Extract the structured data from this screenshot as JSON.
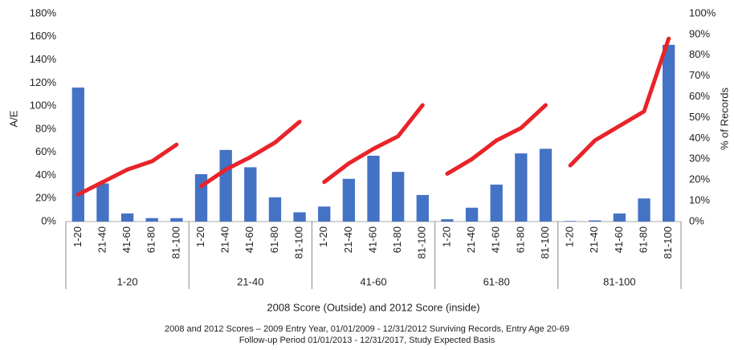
{
  "chart_data": {
    "type": "combo",
    "xlabel": "2008 Score (Outside) and 2012 Score (inside)",
    "ylabel": "A/E",
    "y2label": "% of Records",
    "footnote": [
      "2008 and 2012 Scores – 2009 Entry Year, 01/01/2009 - 12/31/2012 Surviving Records, Entry Age 20-69",
      "Follow-up Period 01/01/2013 - 12/31/2017, Study Expected Basis"
    ],
    "groups": [
      "1-20",
      "21-40",
      "41-60",
      "61-80",
      "81-100"
    ],
    "categories": [
      "1-20",
      "21-40",
      "41-60",
      "61-80",
      "81-100",
      "1-20",
      "21-40",
      "41-60",
      "61-80",
      "81-100",
      "1-20",
      "21-40",
      "41-60",
      "61-80",
      "81-100",
      "1-20",
      "21-40",
      "41-60",
      "61-80",
      "81-100",
      "1-20",
      "21-40",
      "41-60",
      "61-80",
      "81-100"
    ],
    "series": [
      {
        "type": "bar",
        "color": "#4472c4",
        "values": [
          116,
          33,
          7,
          3,
          3,
          41,
          62,
          47,
          21,
          8,
          13,
          37,
          57,
          43,
          23,
          2,
          12,
          32,
          59,
          63,
          0.5,
          1,
          7,
          20,
          153
        ]
      },
      {
        "type": "line",
        "axis": "y2",
        "color": "#e8242a",
        "values": [
          13,
          19,
          25,
          29,
          37,
          17,
          25,
          31,
          38,
          48,
          19,
          28,
          35,
          41,
          56,
          23,
          30,
          39,
          45,
          56,
          27,
          39,
          46,
          53,
          88
        ]
      }
    ],
    "ylim": [
      0,
      180
    ],
    "yticks": [
      {
        "value": 0,
        "label": "0%"
      },
      {
        "value": 20,
        "label": "20%"
      },
      {
        "value": 40,
        "label": "40%"
      },
      {
        "value": 60,
        "label": "60%"
      },
      {
        "value": 80,
        "label": "80%"
      },
      {
        "value": 100,
        "label": "100%"
      },
      {
        "value": 120,
        "label": "120%"
      },
      {
        "value": 140,
        "label": "140%"
      },
      {
        "value": 160,
        "label": "160%"
      },
      {
        "value": 180,
        "label": "180%"
      }
    ],
    "y2lim": [
      0,
      100
    ],
    "y2ticks": [
      {
        "value": 0,
        "label": "0%"
      },
      {
        "value": 10,
        "label": "10%"
      },
      {
        "value": 20,
        "label": "20%"
      },
      {
        "value": 30,
        "label": "30%"
      },
      {
        "value": 40,
        "label": "40%"
      },
      {
        "value": 50,
        "label": "50%"
      },
      {
        "value": 60,
        "label": "60%"
      },
      {
        "value": 70,
        "label": "70%"
      },
      {
        "value": 80,
        "label": "80%"
      },
      {
        "value": 90,
        "label": "90%"
      },
      {
        "value": 100,
        "label": "100%"
      }
    ]
  }
}
